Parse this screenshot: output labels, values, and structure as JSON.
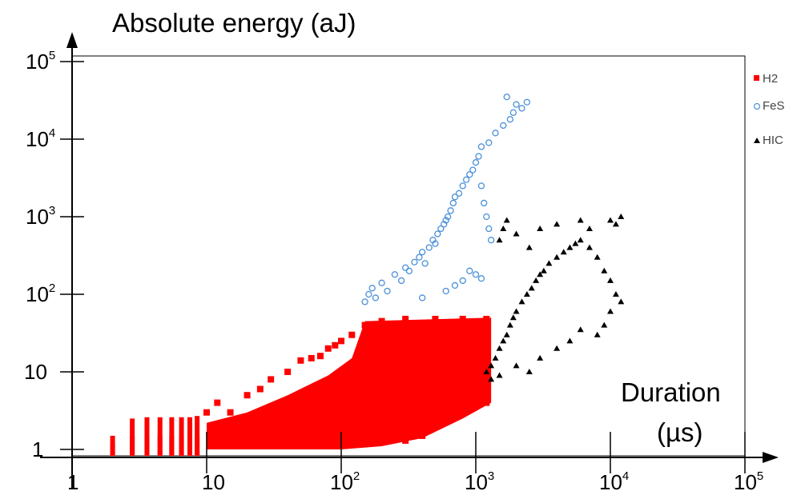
{
  "chart_data": {
    "type": "scatter",
    "title": "",
    "ylabel": "Absolute energy (aJ)",
    "xlabel_line1": "Duration",
    "xlabel_line2": "(µs)",
    "x_scale": "log",
    "y_scale": "log",
    "xlim": [
      1,
      100000
    ],
    "ylim": [
      1,
      100000
    ],
    "x_ticks": [
      {
        "value": 1,
        "base": "1",
        "exp": ""
      },
      {
        "value": 10,
        "base": "10",
        "exp": ""
      },
      {
        "value": 100,
        "base": "10",
        "exp": "2"
      },
      {
        "value": 1000,
        "base": "10",
        "exp": "3"
      },
      {
        "value": 10000,
        "base": "10",
        "exp": "4"
      },
      {
        "value": 100000,
        "base": "10",
        "exp": "5"
      }
    ],
    "y_ticks": [
      {
        "value": 1,
        "base": "1",
        "exp": ""
      },
      {
        "value": 10,
        "base": "10",
        "exp": ""
      },
      {
        "value": 100,
        "base": "10",
        "exp": "2"
      },
      {
        "value": 1000,
        "base": "10",
        "exp": "3"
      },
      {
        "value": 10000,
        "base": "10",
        "exp": "4"
      },
      {
        "value": 100000,
        "base": "10",
        "exp": "5"
      }
    ],
    "grid": false,
    "legend_position": "top-right",
    "series": [
      {
        "name": "H2",
        "color": "#ff0000",
        "marker": "square",
        "region": {
          "x_min": 2,
          "x_max": 1300,
          "y_min": 1,
          "y_max": 50
        },
        "points": [
          [
            2,
            1.5
          ],
          [
            2,
            1.2
          ],
          [
            2.8,
            2.5
          ],
          [
            2.8,
            1.5
          ],
          [
            3.6,
            2.6
          ],
          [
            3.6,
            1.4
          ],
          [
            4.5,
            2.6
          ],
          [
            4.5,
            1.5
          ],
          [
            5.5,
            2.6
          ],
          [
            5.5,
            1.5
          ],
          [
            6.5,
            2.6
          ],
          [
            6.5,
            1.5
          ],
          [
            7.5,
            2.6
          ],
          [
            7.5,
            1.5
          ],
          [
            8.5,
            2.7
          ],
          [
            8.5,
            1.5
          ],
          [
            10,
            3
          ],
          [
            12,
            4
          ],
          [
            15,
            3
          ],
          [
            20,
            5
          ],
          [
            25,
            6
          ],
          [
            30,
            8
          ],
          [
            40,
            10
          ],
          [
            50,
            14
          ],
          [
            60,
            15
          ],
          [
            70,
            16
          ],
          [
            80,
            20
          ],
          [
            90,
            22
          ],
          [
            100,
            25
          ],
          [
            120,
            30
          ],
          [
            150,
            40
          ],
          [
            200,
            45
          ],
          [
            300,
            48
          ],
          [
            500,
            48
          ],
          [
            800,
            48
          ],
          [
            1200,
            48
          ],
          [
            50,
            1.2
          ],
          [
            100,
            1.5
          ],
          [
            200,
            2
          ],
          [
            300,
            3
          ],
          [
            500,
            4
          ],
          [
            800,
            5
          ],
          [
            1200,
            4
          ],
          [
            400,
            1.5
          ],
          [
            300,
            1.3
          ]
        ]
      },
      {
        "name": "FeS",
        "color": "#4a90d9",
        "marker": "open-circle",
        "points": [
          [
            150,
            80
          ],
          [
            160,
            100
          ],
          [
            170,
            120
          ],
          [
            180,
            90
          ],
          [
            200,
            140
          ],
          [
            220,
            110
          ],
          [
            250,
            180
          ],
          [
            280,
            150
          ],
          [
            300,
            220
          ],
          [
            320,
            200
          ],
          [
            350,
            260
          ],
          [
            380,
            300
          ],
          [
            400,
            350
          ],
          [
            420,
            250
          ],
          [
            450,
            400
          ],
          [
            480,
            500
          ],
          [
            500,
            450
          ],
          [
            520,
            600
          ],
          [
            550,
            700
          ],
          [
            580,
            800
          ],
          [
            600,
            900
          ],
          [
            620,
            1000
          ],
          [
            650,
            1200
          ],
          [
            680,
            1500
          ],
          [
            700,
            1800
          ],
          [
            750,
            2000
          ],
          [
            800,
            2500
          ],
          [
            850,
            3000
          ],
          [
            900,
            3500
          ],
          [
            950,
            4000
          ],
          [
            1000,
            5000
          ],
          [
            1050,
            6000
          ],
          [
            1100,
            2500
          ],
          [
            1150,
            1500
          ],
          [
            1200,
            1000
          ],
          [
            1250,
            700
          ],
          [
            1300,
            500
          ],
          [
            1100,
            8000
          ],
          [
            1250,
            9000
          ],
          [
            1400,
            12000
          ],
          [
            1600,
            15000
          ],
          [
            1800,
            18000
          ],
          [
            2000,
            28000
          ],
          [
            2200,
            25000
          ],
          [
            2400,
            30000
          ],
          [
            1700,
            35000
          ],
          [
            1900,
            22000
          ],
          [
            600,
            110
          ],
          [
            700,
            130
          ],
          [
            800,
            150
          ],
          [
            900,
            200
          ],
          [
            1000,
            180
          ],
          [
            1100,
            160
          ],
          [
            400,
            90
          ]
        ]
      },
      {
        "name": "HIC",
        "color": "#000000",
        "marker": "triangle",
        "points": [
          [
            1200,
            10
          ],
          [
            1300,
            12
          ],
          [
            1400,
            15
          ],
          [
            1500,
            20
          ],
          [
            1600,
            25
          ],
          [
            1700,
            30
          ],
          [
            1800,
            40
          ],
          [
            1900,
            50
          ],
          [
            2000,
            60
          ],
          [
            2200,
            80
          ],
          [
            2400,
            100
          ],
          [
            2600,
            120
          ],
          [
            2800,
            150
          ],
          [
            3000,
            180
          ],
          [
            3200,
            200
          ],
          [
            3500,
            250
          ],
          [
            4000,
            300
          ],
          [
            4500,
            350
          ],
          [
            5000,
            400
          ],
          [
            5500,
            450
          ],
          [
            6000,
            500
          ],
          [
            7000,
            400
          ],
          [
            8000,
            300
          ],
          [
            9000,
            200
          ],
          [
            10000,
            150
          ],
          [
            11000,
            100
          ],
          [
            12000,
            80
          ],
          [
            10000,
            900
          ],
          [
            11000,
            800
          ],
          [
            12000,
            1000
          ],
          [
            6000,
            900
          ],
          [
            7000,
            700
          ],
          [
            1500,
            500
          ],
          [
            1600,
            700
          ],
          [
            1700,
            900
          ],
          [
            2000,
            600
          ],
          [
            2500,
            400
          ],
          [
            3000,
            700
          ],
          [
            4000,
            800
          ],
          [
            1300,
            8
          ],
          [
            1500,
            9
          ],
          [
            2000,
            12
          ],
          [
            2500,
            10
          ],
          [
            3000,
            15
          ],
          [
            4000,
            20
          ],
          [
            5000,
            25
          ],
          [
            6000,
            35
          ],
          [
            8000,
            30
          ],
          [
            9000,
            40
          ],
          [
            10000,
            60
          ]
        ]
      }
    ]
  }
}
